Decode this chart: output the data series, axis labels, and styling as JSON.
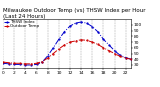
{
  "title": "Milwaukee Outdoor Temp (vs) THSW Index per Hour (Last 24 Hours)",
  "bg_color": "#ffffff",
  "plot_bg_color": "#ffffff",
  "grid_color": "#888888",
  "line1_color": "#0000cc",
  "line2_color": "#cc0000",
  "line1_label": "THSW Index",
  "line2_label": "Outdoor Temp",
  "ylim": [
    25,
    110
  ],
  "xlim": [
    0,
    23
  ],
  "ytick_values": [
    30,
    40,
    50,
    60,
    70,
    80,
    90,
    100
  ],
  "ytick_labels": [
    "30",
    "40",
    "50",
    "60",
    "70",
    "80",
    "90",
    "100"
  ],
  "xtick_positions": [
    0,
    2,
    4,
    6,
    8,
    10,
    12,
    14,
    16,
    18,
    20,
    22
  ],
  "xtick_labels": [
    "0",
    "2",
    "4",
    "6",
    "8",
    "10",
    "12",
    "14",
    "16",
    "18",
    "20",
    "22"
  ],
  "hours": [
    0,
    1,
    2,
    3,
    4,
    5,
    6,
    7,
    8,
    9,
    10,
    11,
    12,
    13,
    14,
    15,
    16,
    17,
    18,
    19,
    20,
    21,
    22,
    23
  ],
  "temp": [
    35,
    34,
    33,
    33,
    32,
    32,
    33,
    36,
    42,
    50,
    58,
    65,
    70,
    72,
    74,
    73,
    70,
    66,
    60,
    55,
    50,
    45,
    42,
    40
  ],
  "thsw": [
    33,
    32,
    31,
    31,
    30,
    30,
    31,
    35,
    46,
    60,
    75,
    88,
    98,
    103,
    105,
    103,
    97,
    88,
    75,
    65,
    55,
    47,
    43,
    40
  ],
  "title_fontsize": 4.0,
  "tick_fontsize": 3.2,
  "legend_fontsize": 3.0,
  "linewidth": 0.7,
  "markersize": 1.2
}
